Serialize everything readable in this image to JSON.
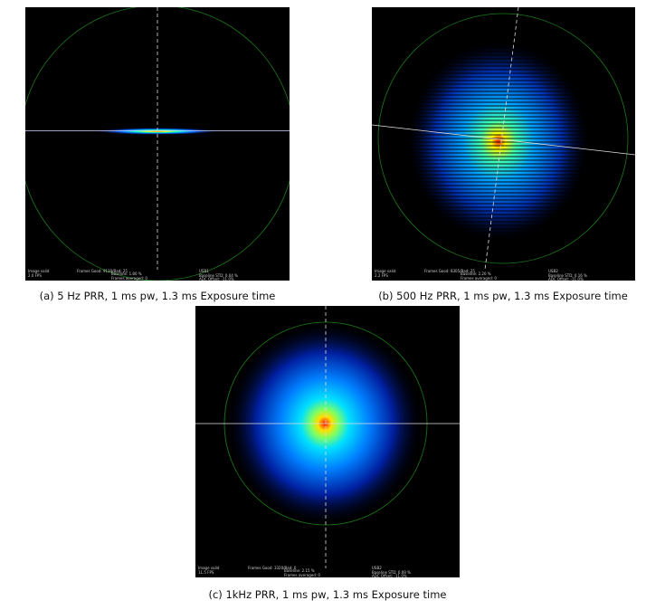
{
  "figures": [
    {
      "caption": "(a) 5 Hz PRR, 1 ms pw, 1.3 ms Exposure time",
      "hud": {
        "status": "Image valid",
        "fps": "2.0 FPS",
        "frames": "Frames Good: 9130/Bad: 25",
        "baseline": "Baseline: 1.80 %",
        "averaged": "Frames averaged: 0",
        "device": "USB1",
        "baseline_std": "Baseline STD: 0.04 %",
        "adc": "ADC Offset: -11.0%"
      }
    },
    {
      "caption": "(b) 500 Hz PRR, 1 ms pw, 1.3 ms Exposure time",
      "hud": {
        "status": "Image valid",
        "fps": "2.2 FPS",
        "frames": "Frames Good: 8305/Bad: 25",
        "baseline": "Baseline: 2.20 %",
        "averaged": "Frames averaged: 0",
        "device": "USB2",
        "baseline_std": "Baseline STD: 0.16 %",
        "adc": "ADC Offset: -11.0%"
      }
    },
    {
      "caption": "(c) 1kHz PRR, 1 ms pw, 1.3 ms Exposure time",
      "hud": {
        "status": "Image valid",
        "fps": "11.5 FPS",
        "frames": "Frames Good: 3320/Bad: 0",
        "baseline": "Baseline: 2.15 %",
        "averaged": "Frames averaged: 0",
        "device": "USB2",
        "baseline_std": "Baseline STD: 0.09 %",
        "adc": "ADC Offset: -11.0%"
      }
    }
  ]
}
